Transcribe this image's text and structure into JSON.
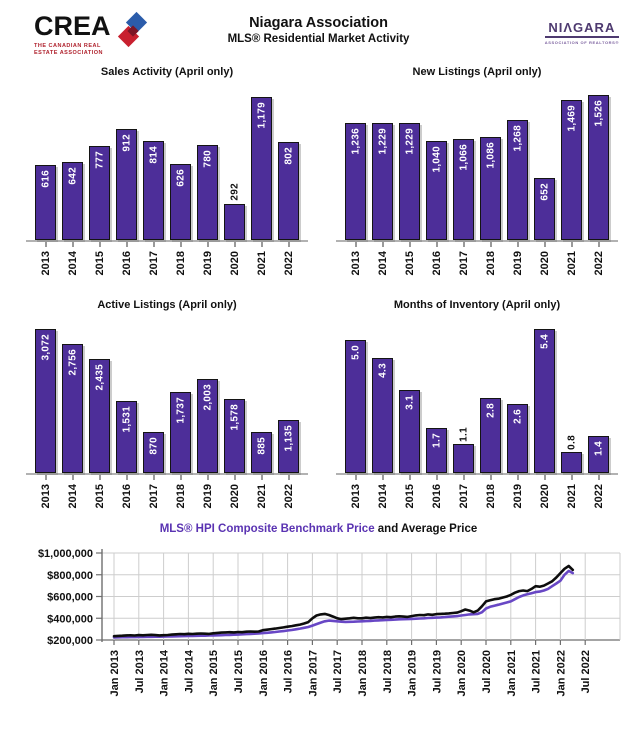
{
  "header": {
    "crea_logo": {
      "text": "CREA",
      "caption_line1": "THE CANADIAN REAL",
      "caption_line2": "ESTATE ASSOCIATION"
    },
    "title": "Niagara Association",
    "subtitle": "MLS® Residential Market Activity",
    "niagara_logo": {
      "text": "NIΛGARA",
      "caption": "ASSOCIATION OF REALTORS®"
    }
  },
  "colors": {
    "bar_fill": "#4d2e99",
    "bar_border": "#141414",
    "benchmark_line": "#6847c5",
    "average_line": "#0d0d0d",
    "benchmark_title": "#5a33b2",
    "gridline": "#cdcdcd",
    "crea_blue": "#2b5caa",
    "crea_red": "#c8202f",
    "niagara_purple": "#4e3a70"
  },
  "chart_data": [
    {
      "type": "bar",
      "title": "Sales Activity (April only)",
      "categories": [
        "2013",
        "2014",
        "2015",
        "2016",
        "2017",
        "2018",
        "2019",
        "2020",
        "2021",
        "2022"
      ],
      "values": [
        616,
        642,
        777,
        912,
        814,
        626,
        780,
        292,
        1179,
        802
      ],
      "labels": [
        "616",
        "642",
        "777",
        "912",
        "814",
        "626",
        "780",
        "292",
        "1,179",
        "802"
      ],
      "ylim": [
        0,
        1250
      ],
      "label_outside_indices": [
        7
      ],
      "grid": false,
      "legend": "none"
    },
    {
      "type": "bar",
      "title": "New Listings (April only)",
      "categories": [
        "2013",
        "2014",
        "2015",
        "2016",
        "2017",
        "2018",
        "2019",
        "2020",
        "2021",
        "2022"
      ],
      "values": [
        1236,
        1229,
        1229,
        1040,
        1066,
        1086,
        1268,
        652,
        1469,
        1526
      ],
      "labels": [
        "1,236",
        "1,229",
        "1,229",
        "1,040",
        "1,066",
        "1,086",
        "1,268",
        "652",
        "1,469",
        "1,526"
      ],
      "ylim": [
        0,
        1600
      ],
      "label_outside_indices": [],
      "grid": false,
      "legend": "none"
    },
    {
      "type": "bar",
      "title": "Active Listings (April only)",
      "categories": [
        "2013",
        "2014",
        "2015",
        "2016",
        "2017",
        "2018",
        "2019",
        "2020",
        "2021",
        "2022"
      ],
      "values": [
        3072,
        2756,
        2435,
        1531,
        870,
        1737,
        2003,
        1578,
        885,
        1135
      ],
      "labels": [
        "3,072",
        "2,756",
        "2,435",
        "1,531",
        "870",
        "1,737",
        "2,003",
        "1,578",
        "885",
        "1,135"
      ],
      "ylim": [
        0,
        3250
      ],
      "label_outside_indices": [],
      "grid": false,
      "legend": "none"
    },
    {
      "type": "bar",
      "title": "Months of Inventory (April only)",
      "categories": [
        "2013",
        "2014",
        "2015",
        "2016",
        "2017",
        "2018",
        "2019",
        "2020",
        "2021",
        "2022"
      ],
      "values": [
        5.0,
        4.3,
        3.1,
        1.7,
        1.1,
        2.8,
        2.6,
        5.4,
        0.8,
        1.4
      ],
      "labels": [
        "5.0",
        "4.3",
        "3.1",
        "1.7",
        "1.1",
        "2.8",
        "2.6",
        "5.4",
        "0.8",
        "1.4"
      ],
      "ylim": [
        0,
        5.7
      ],
      "label_outside_indices": [
        4,
        8
      ],
      "grid": false,
      "legend": "none"
    },
    {
      "type": "line",
      "title_benchmark": "MLS® HPI Composite Benchmark Price",
      "title_average": " and Average Price",
      "unit": "CAD, values in thousands of dollars",
      "ylim_thousands": [
        200,
        1000
      ],
      "y_tick_labels": [
        "$1,000,000",
        "$800,000",
        "$600,000",
        "$400,000",
        "$200,000"
      ],
      "y_tick_values_thousands": [
        1000,
        800,
        600,
        400,
        200
      ],
      "x_tick_labels": [
        "Jan 2013",
        "Jul 2013",
        "Jan 2014",
        "Jul 2014",
        "Jan 2015",
        "Jul 2015",
        "Jan 2016",
        "Jul 2016",
        "Jan 2017",
        "Jul 2017",
        "Jan 2018",
        "Jul 2018",
        "Jan 2019",
        "Jul 2019",
        "Jan 2020",
        "Jul 2020",
        "Jan 2021",
        "Jul 2021",
        "Jan 2022",
        "Jul 2022"
      ],
      "grid": true,
      "legend": "in-title",
      "months": [
        "2013-01",
        "2013-02",
        "2013-03",
        "2013-04",
        "2013-05",
        "2013-06",
        "2013-07",
        "2013-08",
        "2013-09",
        "2013-10",
        "2013-11",
        "2013-12",
        "2014-01",
        "2014-02",
        "2014-03",
        "2014-04",
        "2014-05",
        "2014-06",
        "2014-07",
        "2014-08",
        "2014-09",
        "2014-10",
        "2014-11",
        "2014-12",
        "2015-01",
        "2015-02",
        "2015-03",
        "2015-04",
        "2015-05",
        "2015-06",
        "2015-07",
        "2015-08",
        "2015-09",
        "2015-10",
        "2015-11",
        "2015-12",
        "2016-01",
        "2016-02",
        "2016-03",
        "2016-04",
        "2016-05",
        "2016-06",
        "2016-07",
        "2016-08",
        "2016-09",
        "2016-10",
        "2016-11",
        "2016-12",
        "2017-01",
        "2017-02",
        "2017-03",
        "2017-04",
        "2017-05",
        "2017-06",
        "2017-07",
        "2017-08",
        "2017-09",
        "2017-10",
        "2017-11",
        "2017-12",
        "2018-01",
        "2018-02",
        "2018-03",
        "2018-04",
        "2018-05",
        "2018-06",
        "2018-07",
        "2018-08",
        "2018-09",
        "2018-10",
        "2018-11",
        "2018-12",
        "2019-01",
        "2019-02",
        "2019-03",
        "2019-04",
        "2019-05",
        "2019-06",
        "2019-07",
        "2019-08",
        "2019-09",
        "2019-10",
        "2019-11",
        "2019-12",
        "2020-01",
        "2020-02",
        "2020-03",
        "2020-04",
        "2020-05",
        "2020-06",
        "2020-07",
        "2020-08",
        "2020-09",
        "2020-10",
        "2020-11",
        "2020-12",
        "2021-01",
        "2021-02",
        "2021-03",
        "2021-04",
        "2021-05",
        "2021-06",
        "2021-07",
        "2021-08",
        "2021-09",
        "2021-10",
        "2021-11",
        "2021-12",
        "2022-01",
        "2022-02",
        "2022-03",
        "2022-04"
      ],
      "series": [
        {
          "name": "MLS® HPI Composite Benchmark Price",
          "color": "#6847c5",
          "values_thousands": [
            224,
            225,
            226,
            226,
            227,
            227,
            228,
            228,
            229,
            229,
            230,
            230,
            231,
            232,
            233,
            234,
            235,
            236,
            237,
            238,
            239,
            240,
            240,
            241,
            242,
            243,
            244,
            246,
            247,
            249,
            250,
            252,
            254,
            256,
            258,
            260,
            263,
            266,
            270,
            274,
            278,
            282,
            287,
            292,
            298,
            305,
            312,
            320,
            332,
            346,
            360,
            372,
            378,
            376,
            372,
            368,
            366,
            367,
            368,
            370,
            372,
            374,
            376,
            378,
            380,
            382,
            384,
            386,
            388,
            390,
            391,
            392,
            394,
            396,
            398,
            400,
            402,
            404,
            406,
            408,
            411,
            414,
            417,
            420,
            425,
            430,
            435,
            437,
            440,
            455,
            490,
            505,
            515,
            525,
            535,
            545,
            555,
            575,
            595,
            610,
            620,
            630,
            640,
            645,
            655,
            670,
            695,
            720,
            745,
            800,
            835,
            815
          ]
        },
        {
          "name": "Average Price",
          "color": "#0d0d0d",
          "values_thousands": [
            235,
            238,
            240,
            242,
            243,
            241,
            245,
            243,
            246,
            248,
            245,
            242,
            244,
            246,
            250,
            252,
            255,
            253,
            257,
            255,
            258,
            260,
            258,
            256,
            262,
            265,
            268,
            270,
            272,
            270,
            274,
            272,
            276,
            278,
            276,
            278,
            290,
            295,
            300,
            305,
            310,
            316,
            322,
            328,
            335,
            342,
            352,
            365,
            400,
            425,
            435,
            440,
            430,
            415,
            400,
            392,
            396,
            400,
            404,
            400,
            400,
            405,
            401,
            406,
            410,
            408,
            412,
            410,
            415,
            418,
            415,
            412,
            420,
            426,
            430,
            428,
            435,
            432,
            438,
            440,
            442,
            445,
            448,
            452,
            465,
            480,
            470,
            455,
            470,
            510,
            555,
            565,
            575,
            580,
            590,
            600,
            615,
            635,
            650,
            655,
            650,
            670,
            695,
            690,
            700,
            720,
            740,
            775,
            815,
            855,
            880,
            845
          ]
        }
      ]
    }
  ]
}
